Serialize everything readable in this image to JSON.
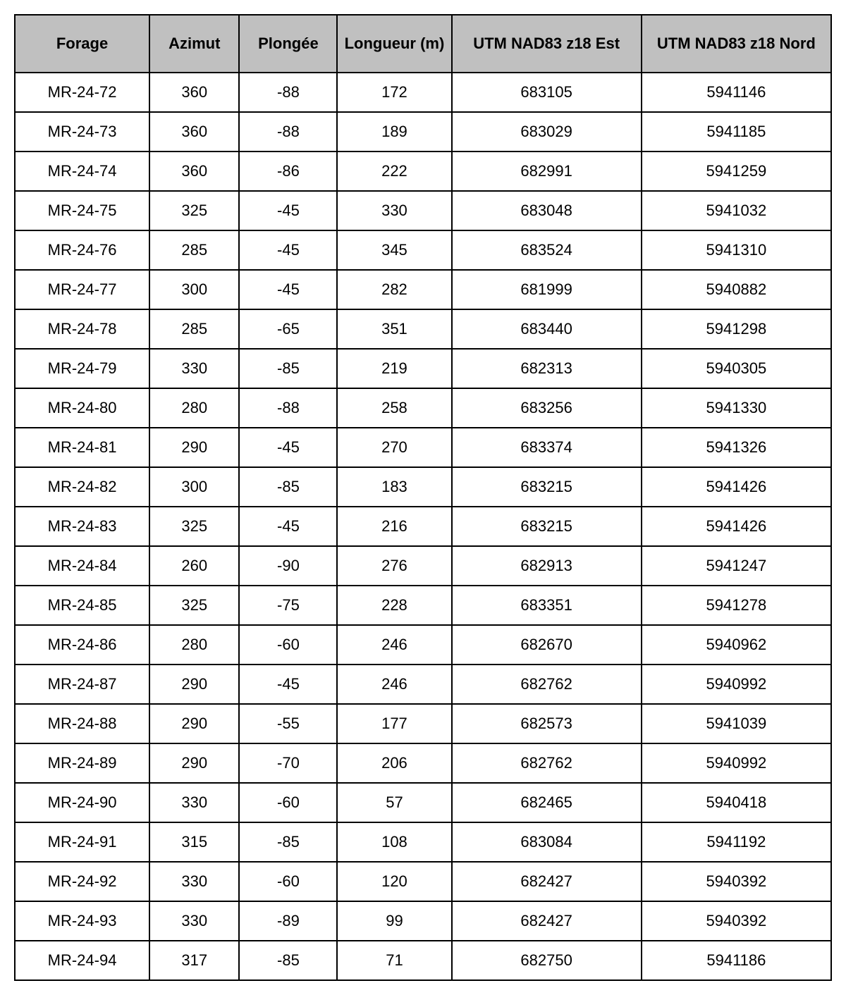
{
  "table": {
    "type": "table",
    "header_background": "#c0c0c0",
    "row_background": "#ffffff",
    "border_color": "#000000",
    "text_color": "#000000",
    "font_family": "Arial",
    "header_fontsize_pt": 17,
    "cell_fontsize_pt": 17,
    "header_fontweight": "bold",
    "cell_fontweight": "normal",
    "column_widths_pct": [
      16.5,
      11,
      12,
      14,
      23.25,
      23.25
    ],
    "columns": [
      "Forage",
      "Azimut",
      "Plongée",
      "Longueur (m)",
      "UTM NAD83 z18 Est",
      "UTM NAD83 z18 Nord"
    ],
    "rows": [
      [
        "MR-24-72",
        "360",
        "-88",
        "172",
        "683105",
        "5941146"
      ],
      [
        "MR-24-73",
        "360",
        "-88",
        "189",
        "683029",
        "5941185"
      ],
      [
        "MR-24-74",
        "360",
        "-86",
        "222",
        "682991",
        "5941259"
      ],
      [
        "MR-24-75",
        "325",
        "-45",
        "330",
        "683048",
        "5941032"
      ],
      [
        "MR-24-76",
        "285",
        "-45",
        "345",
        "683524",
        "5941310"
      ],
      [
        "MR-24-77",
        "300",
        "-45",
        "282",
        "681999",
        "5940882"
      ],
      [
        "MR-24-78",
        "285",
        "-65",
        "351",
        "683440",
        "5941298"
      ],
      [
        "MR-24-79",
        "330",
        "-85",
        "219",
        "682313",
        "5940305"
      ],
      [
        "MR-24-80",
        "280",
        "-88",
        "258",
        "683256",
        "5941330"
      ],
      [
        "MR-24-81",
        "290",
        "-45",
        "270",
        "683374",
        "5941326"
      ],
      [
        "MR-24-82",
        "300",
        "-85",
        "183",
        "683215",
        "5941426"
      ],
      [
        "MR-24-83",
        "325",
        "-45",
        "216",
        "683215",
        "5941426"
      ],
      [
        "MR-24-84",
        "260",
        "-90",
        "276",
        "682913",
        "5941247"
      ],
      [
        "MR-24-85",
        "325",
        "-75",
        "228",
        "683351",
        "5941278"
      ],
      [
        "MR-24-86",
        "280",
        "-60",
        "246",
        "682670",
        "5940962"
      ],
      [
        "MR-24-87",
        "290",
        "-45",
        "246",
        "682762",
        "5940992"
      ],
      [
        "MR-24-88",
        "290",
        "-55",
        "177",
        "682573",
        "5941039"
      ],
      [
        "MR-24-89",
        "290",
        "-70",
        "206",
        "682762",
        "5940992"
      ],
      [
        "MR-24-90",
        "330",
        "-60",
        "57",
        "682465",
        "5940418"
      ],
      [
        "MR-24-91",
        "315",
        "-85",
        "108",
        "683084",
        "5941192"
      ],
      [
        "MR-24-92",
        "330",
        "-60",
        "120",
        "682427",
        "5940392"
      ],
      [
        "MR-24-93",
        "330",
        "-89",
        "99",
        "682427",
        "5940392"
      ],
      [
        "MR-24-94",
        "317",
        "-85",
        "71",
        "682750",
        "5941186"
      ]
    ]
  }
}
